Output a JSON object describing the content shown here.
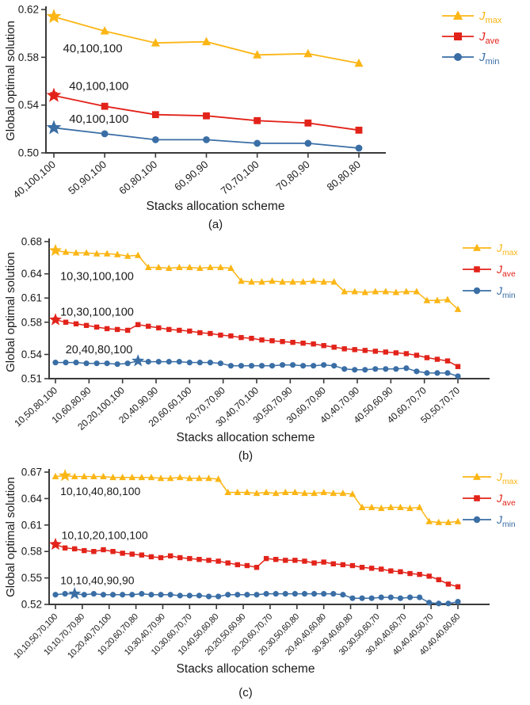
{
  "figure_title": "Global optimal solution vs stacks allocation scheme",
  "colors": {
    "jmax": "#FBB616",
    "jave": "#E2231A",
    "jmin": "#3A6EA5",
    "axis": "#3a3a3a",
    "text": "#1b1b1b"
  },
  "chart_data": [
    {
      "type": "line",
      "label": "(a)",
      "xlabel": "Stacks allocation scheme",
      "ylabel": "Global optimal solution",
      "ylim": [
        0.5,
        0.62
      ],
      "yticks": [
        0.5,
        0.54,
        0.58,
        0.62
      ],
      "grid": false,
      "legend_position": "top-right",
      "categories": [
        "40,100,100",
        "50,90,100",
        "60,80,100",
        "60,90,90",
        "70,70,100",
        "70,80,90",
        "80,80,80"
      ],
      "series": [
        {
          "name": "jmax",
          "legend_main": "J",
          "legend_sub": "max",
          "marker": "triangle",
          "color_key": "jmax",
          "star_index": 0,
          "annotation": {
            "text": "40,100,100",
            "x_frac": 0.03,
            "y": 0.5875
          },
          "values": [
            0.614,
            0.602,
            0.592,
            0.593,
            0.582,
            0.583,
            0.575
          ]
        },
        {
          "name": "jave",
          "legend_main": "J",
          "legend_sub": "ave",
          "marker": "square",
          "color_key": "jave",
          "star_index": 0,
          "annotation": {
            "text": "40,100,100",
            "x_frac": 0.05,
            "y": 0.556
          },
          "values": [
            0.548,
            0.539,
            0.532,
            0.531,
            0.527,
            0.525,
            0.519
          ]
        },
        {
          "name": "jmin",
          "legend_main": "J",
          "legend_sub": "min",
          "marker": "circle",
          "color_key": "jmin",
          "star_index": 0,
          "annotation": {
            "text": "40,100,100",
            "x_frac": 0.05,
            "y": 0.5285
          },
          "values": [
            0.521,
            0.516,
            0.511,
            0.511,
            0.508,
            0.508,
            0.504
          ]
        }
      ]
    },
    {
      "type": "line",
      "label": "(b)",
      "xlabel": "Stacks allocation scheme",
      "ylabel": "Global optimal solution",
      "ylim": [
        0.51,
        0.68
      ],
      "yticks": [
        0.51,
        0.54,
        0.58,
        0.61,
        0.64,
        0.68
      ],
      "grid": false,
      "legend_position": "top-right",
      "categories": [
        "10,50,80,100",
        "10,60,80,90",
        "20,20,100,100",
        "20,40,90,90",
        "20,60,60,100",
        "20,70,70,80",
        "30,40,70,100",
        "30,50,70,90",
        "30,60,70,80",
        "40,40,70,90",
        "40,50,60,90",
        "40,60,70,70",
        "50,50,70,70"
      ],
      "series": [
        {
          "name": "jmax",
          "legend_main": "J",
          "legend_sub": "max",
          "marker": "triangle",
          "color_key": "jmax",
          "star_index": 0,
          "annotation": {
            "text": "10,30,100,100",
            "x_frac": 0.012,
            "y": 0.6375
          },
          "values": [
            0.669,
            0.667,
            0.666,
            0.666,
            0.665,
            0.665,
            0.664,
            0.662,
            0.663,
            0.648,
            0.648,
            0.647,
            0.648,
            0.648,
            0.647,
            0.648,
            0.648,
            0.647,
            0.631,
            0.63,
            0.63,
            0.631,
            0.63,
            0.63,
            0.63,
            0.631,
            0.63,
            0.63,
            0.618,
            0.618,
            0.617,
            0.618,
            0.618,
            0.617,
            0.618,
            0.618,
            0.607,
            0.607,
            0.608,
            0.596
          ]
        },
        {
          "name": "jave",
          "legend_main": "J",
          "legend_sub": "ave",
          "marker": "square",
          "color_key": "jave",
          "star_index": 0,
          "annotation": {
            "text": "10,30,100,100",
            "x_frac": 0.012,
            "y": 0.593
          },
          "values": [
            0.583,
            0.58,
            0.578,
            0.576,
            0.574,
            0.572,
            0.571,
            0.57,
            0.577,
            0.575,
            0.573,
            0.571,
            0.57,
            0.569,
            0.567,
            0.566,
            0.564,
            0.563,
            0.561,
            0.56,
            0.558,
            0.557,
            0.556,
            0.555,
            0.554,
            0.553,
            0.551,
            0.549,
            0.547,
            0.546,
            0.545,
            0.544,
            0.543,
            0.542,
            0.541,
            0.539,
            0.536,
            0.534,
            0.532,
            0.525
          ]
        },
        {
          "name": "jmin",
          "legend_main": "J",
          "legend_sub": "min",
          "marker": "circle",
          "color_key": "jmin",
          "star_index": 8,
          "annotation": {
            "text": "20,40,80,100",
            "x_frac": 0.025,
            "y": 0.5465
          },
          "values": [
            0.53,
            0.53,
            0.53,
            0.529,
            0.529,
            0.529,
            0.528,
            0.529,
            0.532,
            0.531,
            0.531,
            0.531,
            0.531,
            0.53,
            0.53,
            0.53,
            0.529,
            0.526,
            0.526,
            0.526,
            0.526,
            0.526,
            0.527,
            0.527,
            0.526,
            0.526,
            0.527,
            0.526,
            0.522,
            0.521,
            0.521,
            0.522,
            0.522,
            0.522,
            0.523,
            0.519,
            0.517,
            0.517,
            0.517,
            0.513
          ]
        }
      ]
    },
    {
      "type": "line",
      "label": "(c)",
      "xlabel": "Stacks allocation scheme",
      "ylabel": "Global optimal solution",
      "ylim": [
        0.52,
        0.67
      ],
      "yticks": [
        0.52,
        0.55,
        0.58,
        0.61,
        0.64,
        0.67
      ],
      "grid": false,
      "legend_position": "top-right",
      "categories": [
        "10,10,50,70,100",
        "10,10,70,70,80",
        "10,20,40,70,100",
        "10,20,60,70,80",
        "10,30,40,70,90",
        "10,30,60,70,70",
        "10,40,50,60,80",
        "20,20,50,60,90",
        "20,20,60,70,70",
        "20,30,50,60,80",
        "20,40,40,60,80",
        "30,30,40,60,80",
        "30,30,50,60,70",
        "30,40,40,60,70",
        "40,40,40,50,70",
        "40,40,40,60,60"
      ],
      "series": [
        {
          "name": "jmax",
          "legend_main": "J",
          "legend_sub": "max",
          "marker": "triangle",
          "color_key": "jmax",
          "star_index": 1,
          "annotation": {
            "text": "10,10,40,80,100",
            "x_frac": 0.012,
            "y": 0.6485
          },
          "values": [
            0.665,
            0.666,
            0.665,
            0.665,
            0.665,
            0.665,
            0.664,
            0.664,
            0.664,
            0.664,
            0.664,
            0.663,
            0.663,
            0.664,
            0.663,
            0.663,
            0.663,
            0.662,
            0.647,
            0.647,
            0.647,
            0.646,
            0.647,
            0.646,
            0.647,
            0.647,
            0.646,
            0.646,
            0.647,
            0.646,
            0.646,
            0.645,
            0.63,
            0.63,
            0.629,
            0.63,
            0.63,
            0.629,
            0.63,
            0.614,
            0.613,
            0.613,
            0.614
          ]
        },
        {
          "name": "jave",
          "legend_main": "J",
          "legend_sub": "ave",
          "marker": "square",
          "color_key": "jave",
          "star_index": 0,
          "annotation": {
            "text": "10,10,20,100,100",
            "x_frac": 0.015,
            "y": 0.5985
          },
          "values": [
            0.588,
            0.584,
            0.583,
            0.581,
            0.58,
            0.582,
            0.58,
            0.578,
            0.577,
            0.576,
            0.574,
            0.573,
            0.575,
            0.573,
            0.572,
            0.571,
            0.57,
            0.569,
            0.567,
            0.565,
            0.564,
            0.562,
            0.572,
            0.571,
            0.57,
            0.57,
            0.569,
            0.567,
            0.568,
            0.566,
            0.565,
            0.564,
            0.562,
            0.561,
            0.56,
            0.558,
            0.557,
            0.555,
            0.554,
            0.552,
            0.548,
            0.543,
            0.54
          ]
        },
        {
          "name": "jmin",
          "legend_main": "J",
          "legend_sub": "min",
          "marker": "circle",
          "color_key": "jmin",
          "star_index": 2,
          "annotation": {
            "text": "10,10,40,90,90",
            "x_frac": 0.012,
            "y": 0.5475
          },
          "values": [
            0.531,
            0.532,
            0.532,
            0.531,
            0.532,
            0.531,
            0.531,
            0.531,
            0.531,
            0.532,
            0.531,
            0.531,
            0.531,
            0.53,
            0.53,
            0.53,
            0.529,
            0.529,
            0.531,
            0.531,
            0.531,
            0.531,
            0.532,
            0.532,
            0.532,
            0.532,
            0.532,
            0.532,
            0.532,
            0.532,
            0.531,
            0.527,
            0.527,
            0.527,
            0.528,
            0.528,
            0.527,
            0.528,
            0.528,
            0.522,
            0.521,
            0.521,
            0.523
          ]
        }
      ]
    }
  ]
}
